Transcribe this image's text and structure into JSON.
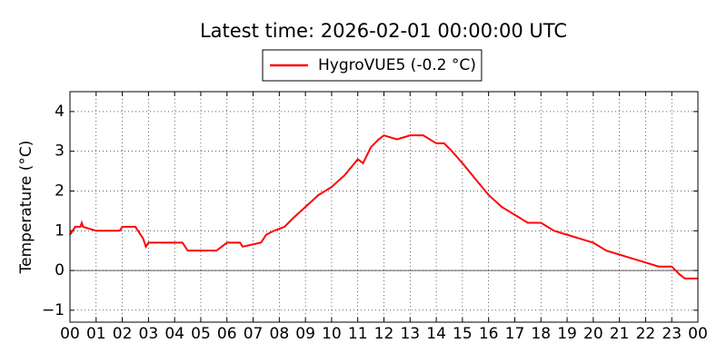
{
  "chart_data": {
    "type": "line",
    "title": "Latest time: 2026-02-01 00:00:00 UTC",
    "y_label": "Temperature (°C)",
    "x": [
      0,
      0.1,
      0.2,
      0.4,
      0.45,
      0.5,
      1.0,
      1.9,
      2.0,
      2.5,
      2.6,
      2.8,
      2.9,
      3.0,
      4.3,
      4.5,
      5.0,
      5.6,
      5.8,
      6.0,
      6.5,
      6.6,
      7.3,
      7.5,
      7.8,
      8.2,
      8.5,
      9.0,
      9.5,
      10.0,
      10.5,
      11.0,
      11.2,
      11.5,
      11.8,
      12.0,
      12.5,
      13.0,
      13.5,
      14.0,
      14.3,
      14.6,
      15.0,
      15.5,
      16.0,
      16.5,
      17.0,
      17.5,
      18.0,
      18.5,
      19.0,
      19.5,
      20.0,
      20.5,
      21.0,
      21.5,
      22.0,
      22.5,
      23.0,
      23.3,
      23.5,
      24.0
    ],
    "series": [
      {
        "name": "HygroVUE5 (-0.2 °C)",
        "color": "#ff0000",
        "values": [
          0.9,
          1.0,
          1.1,
          1.1,
          1.2,
          1.1,
          1.0,
          1.0,
          1.1,
          1.1,
          1.0,
          0.8,
          0.6,
          0.7,
          0.7,
          0.5,
          0.5,
          0.5,
          0.6,
          0.7,
          0.7,
          0.6,
          0.7,
          0.9,
          1.0,
          1.1,
          1.3,
          1.6,
          1.9,
          2.1,
          2.4,
          2.8,
          2.7,
          3.1,
          3.3,
          3.4,
          3.3,
          3.4,
          3.4,
          3.2,
          3.2,
          3.0,
          2.7,
          2.3,
          1.9,
          1.6,
          1.4,
          1.2,
          1.2,
          1.0,
          0.9,
          0.8,
          0.7,
          0.5,
          0.4,
          0.3,
          0.2,
          0.1,
          0.1,
          -0.1,
          -0.2,
          -0.2
        ]
      }
    ],
    "xlim": [
      0,
      24
    ],
    "xticks": [
      {
        "value": 0,
        "label": "00"
      },
      {
        "value": 1,
        "label": "01"
      },
      {
        "value": 2,
        "label": "02"
      },
      {
        "value": 3,
        "label": "03"
      },
      {
        "value": 4,
        "label": "04"
      },
      {
        "value": 5,
        "label": "05"
      },
      {
        "value": 6,
        "label": "06"
      },
      {
        "value": 7,
        "label": "07"
      },
      {
        "value": 8,
        "label": "08"
      },
      {
        "value": 9,
        "label": "09"
      },
      {
        "value": 10,
        "label": "10"
      },
      {
        "value": 11,
        "label": "11"
      },
      {
        "value": 12,
        "label": "12"
      },
      {
        "value": 13,
        "label": "13"
      },
      {
        "value": 14,
        "label": "14"
      },
      {
        "value": 15,
        "label": "15"
      },
      {
        "value": 16,
        "label": "16"
      },
      {
        "value": 17,
        "label": "17"
      },
      {
        "value": 18,
        "label": "18"
      },
      {
        "value": 19,
        "label": "19"
      },
      {
        "value": 20,
        "label": "20"
      },
      {
        "value": 21,
        "label": "21"
      },
      {
        "value": 22,
        "label": "22"
      },
      {
        "value": 23,
        "label": "23"
      },
      {
        "value": 24,
        "label": "00"
      }
    ],
    "ylim": [
      -1.3,
      4.5
    ],
    "yticks": [
      {
        "value": -1,
        "label": "−1"
      },
      0,
      1,
      2,
      3,
      4
    ],
    "grid": true,
    "zero_line": true,
    "legend": "top"
  }
}
